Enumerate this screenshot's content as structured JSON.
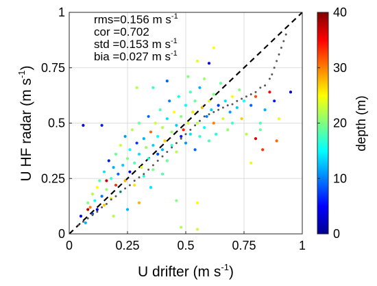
{
  "chart_data": {
    "type": "scatter",
    "xlabel": "U drifter (m s",
    "xlabel_sup": "-1",
    "xlabel_end": ")",
    "ylabel": "U HF radar (m s",
    "ylabel_sup": "-1",
    "ylabel_end": ")",
    "xlim": [
      0,
      1
    ],
    "ylim": [
      0,
      1
    ],
    "x_ticks": [
      0,
      0.25,
      0.5,
      0.75,
      1
    ],
    "y_ticks": [
      0,
      0.25,
      0.5,
      0.75,
      1
    ],
    "x_tick_labels": [
      "0",
      "0.25",
      "0.5",
      "0.75",
      "1"
    ],
    "y_tick_labels": [
      "0",
      "0.25",
      "0.5",
      "0.75",
      "1"
    ],
    "grid": true,
    "stats": [
      {
        "label": "rms=0.156 m s",
        "sup": "-1"
      },
      {
        "label": "cor =0.702",
        "sup": ""
      },
      {
        "label": "std =0.153 m s",
        "sup": "-1"
      },
      {
        "label": "bia =0.027 m s",
        "sup": "-1"
      }
    ],
    "colorbar": {
      "label": "depth (m)",
      "range": [
        0,
        40
      ],
      "ticks": [
        0,
        10,
        20,
        30,
        40
      ],
      "tick_labels": [
        "0",
        "10",
        "20",
        "30",
        "40"
      ],
      "colormap": "jet"
    },
    "reference_line": {
      "style": "dashed",
      "from": [
        0,
        0
      ],
      "to": [
        1,
        1
      ],
      "color": "#000000"
    },
    "quantile_series": {
      "color": "#555555",
      "points": [
        [
          0.04,
          0.04
        ],
        [
          0.06,
          0.055
        ],
        [
          0.08,
          0.07
        ],
        [
          0.1,
          0.085
        ],
        [
          0.12,
          0.1
        ],
        [
          0.14,
          0.12
        ],
        [
          0.16,
          0.135
        ],
        [
          0.18,
          0.155
        ],
        [
          0.2,
          0.17
        ],
        [
          0.22,
          0.19
        ],
        [
          0.24,
          0.205
        ],
        [
          0.26,
          0.22
        ],
        [
          0.28,
          0.24
        ],
        [
          0.3,
          0.255
        ],
        [
          0.32,
          0.27
        ],
        [
          0.34,
          0.29
        ],
        [
          0.36,
          0.31
        ],
        [
          0.38,
          0.33
        ],
        [
          0.4,
          0.35
        ],
        [
          0.42,
          0.37
        ],
        [
          0.44,
          0.39
        ],
        [
          0.46,
          0.41
        ],
        [
          0.48,
          0.43
        ],
        [
          0.5,
          0.45
        ],
        [
          0.52,
          0.47
        ],
        [
          0.54,
          0.49
        ],
        [
          0.56,
          0.51
        ],
        [
          0.58,
          0.53
        ],
        [
          0.6,
          0.54
        ],
        [
          0.62,
          0.55
        ],
        [
          0.64,
          0.56
        ],
        [
          0.66,
          0.57
        ],
        [
          0.68,
          0.58
        ],
        [
          0.7,
          0.585
        ],
        [
          0.72,
          0.6
        ],
        [
          0.74,
          0.61
        ],
        [
          0.76,
          0.62
        ],
        [
          0.78,
          0.63
        ],
        [
          0.8,
          0.64
        ],
        [
          0.82,
          0.66
        ],
        [
          0.84,
          0.67
        ],
        [
          0.86,
          0.7
        ],
        [
          0.87,
          0.72
        ],
        [
          0.88,
          0.75
        ],
        [
          0.89,
          0.78
        ],
        [
          0.9,
          0.81
        ],
        [
          0.91,
          0.84
        ],
        [
          0.92,
          0.87
        ],
        [
          0.93,
          0.9
        ]
      ]
    },
    "points": [
      {
        "x": 0.05,
        "y": 0.08,
        "d": 5
      },
      {
        "x": 0.07,
        "y": 0.05,
        "d": 12
      },
      {
        "x": 0.08,
        "y": 0.14,
        "d": 20
      },
      {
        "x": 0.09,
        "y": 0.12,
        "d": 30
      },
      {
        "x": 0.1,
        "y": 0.18,
        "d": 22
      },
      {
        "x": 0.1,
        "y": 0.09,
        "d": 8
      },
      {
        "x": 0.11,
        "y": 0.15,
        "d": 15
      },
      {
        "x": 0.12,
        "y": 0.21,
        "d": 25
      },
      {
        "x": 0.12,
        "y": 0.11,
        "d": 3
      },
      {
        "x": 0.13,
        "y": 0.24,
        "d": 18
      },
      {
        "x": 0.14,
        "y": 0.17,
        "d": 10
      },
      {
        "x": 0.15,
        "y": 0.13,
        "d": 27
      },
      {
        "x": 0.15,
        "y": 0.28,
        "d": 14
      },
      {
        "x": 0.16,
        "y": 0.2,
        "d": 21
      },
      {
        "x": 0.17,
        "y": 0.33,
        "d": 6
      },
      {
        "x": 0.18,
        "y": 0.25,
        "d": 17
      },
      {
        "x": 0.18,
        "y": 0.16,
        "d": 24
      },
      {
        "x": 0.19,
        "y": 0.3,
        "d": 12
      },
      {
        "x": 0.2,
        "y": 0.22,
        "d": 33
      },
      {
        "x": 0.2,
        "y": 0.36,
        "d": 19
      },
      {
        "x": 0.21,
        "y": 0.27,
        "d": 9
      },
      {
        "x": 0.22,
        "y": 0.19,
        "d": 16
      },
      {
        "x": 0.22,
        "y": 0.4,
        "d": 23
      },
      {
        "x": 0.23,
        "y": 0.31,
        "d": 13
      },
      {
        "x": 0.24,
        "y": 0.24,
        "d": 28
      },
      {
        "x": 0.24,
        "y": 0.44,
        "d": 11
      },
      {
        "x": 0.25,
        "y": 0.34,
        "d": 20
      },
      {
        "x": 0.26,
        "y": 0.28,
        "d": 4
      },
      {
        "x": 0.26,
        "y": 0.38,
        "d": 15
      },
      {
        "x": 0.27,
        "y": 0.47,
        "d": 22
      },
      {
        "x": 0.28,
        "y": 0.32,
        "d": 18
      },
      {
        "x": 0.28,
        "y": 0.22,
        "d": 26
      },
      {
        "x": 0.29,
        "y": 0.41,
        "d": 7
      },
      {
        "x": 0.3,
        "y": 0.36,
        "d": 14
      },
      {
        "x": 0.3,
        "y": 0.5,
        "d": 19
      },
      {
        "x": 0.31,
        "y": 0.3,
        "d": 24
      },
      {
        "x": 0.32,
        "y": 0.43,
        "d": 12
      },
      {
        "x": 0.32,
        "y": 0.26,
        "d": 17
      },
      {
        "x": 0.33,
        "y": 0.39,
        "d": 21
      },
      {
        "x": 0.34,
        "y": 0.53,
        "d": 9
      },
      {
        "x": 0.34,
        "y": 0.34,
        "d": 16
      },
      {
        "x": 0.35,
        "y": 0.46,
        "d": 31
      },
      {
        "x": 0.36,
        "y": 0.4,
        "d": 13
      },
      {
        "x": 0.36,
        "y": 0.29,
        "d": 20
      },
      {
        "x": 0.37,
        "y": 0.5,
        "d": 23
      },
      {
        "x": 0.38,
        "y": 0.44,
        "d": 15
      },
      {
        "x": 0.38,
        "y": 0.36,
        "d": 8
      },
      {
        "x": 0.39,
        "y": 0.56,
        "d": 18
      },
      {
        "x": 0.4,
        "y": 0.48,
        "d": 22
      },
      {
        "x": 0.4,
        "y": 0.38,
        "d": 12
      },
      {
        "x": 0.41,
        "y": 0.42,
        "d": 27
      },
      {
        "x": 0.42,
        "y": 0.52,
        "d": 14
      },
      {
        "x": 0.42,
        "y": 0.33,
        "d": 19
      },
      {
        "x": 0.43,
        "y": 0.6,
        "d": 10
      },
      {
        "x": 0.44,
        "y": 0.46,
        "d": 21
      },
      {
        "x": 0.44,
        "y": 0.4,
        "d": 17
      },
      {
        "x": 0.45,
        "y": 0.55,
        "d": 25
      },
      {
        "x": 0.46,
        "y": 0.49,
        "d": 13
      },
      {
        "x": 0.46,
        "y": 0.37,
        "d": 22
      },
      {
        "x": 0.47,
        "y": 0.62,
        "d": 16
      },
      {
        "x": 0.48,
        "y": 0.44,
        "d": 6
      },
      {
        "x": 0.48,
        "y": 0.53,
        "d": 20
      },
      {
        "x": 0.49,
        "y": 0.47,
        "d": 34
      },
      {
        "x": 0.5,
        "y": 0.58,
        "d": 15
      },
      {
        "x": 0.5,
        "y": 0.41,
        "d": 11
      },
      {
        "x": 0.51,
        "y": 0.5,
        "d": 23
      },
      {
        "x": 0.52,
        "y": 0.64,
        "d": 18
      },
      {
        "x": 0.52,
        "y": 0.45,
        "d": 14
      },
      {
        "x": 0.53,
        "y": 0.55,
        "d": 26
      },
      {
        "x": 0.54,
        "y": 0.38,
        "d": 9
      },
      {
        "x": 0.54,
        "y": 0.6,
        "d": 19
      },
      {
        "x": 0.55,
        "y": 0.5,
        "d": 22
      },
      {
        "x": 0.56,
        "y": 0.66,
        "d": 12
      },
      {
        "x": 0.56,
        "y": 0.44,
        "d": 17
      },
      {
        "x": 0.57,
        "y": 0.57,
        "d": 28
      },
      {
        "x": 0.58,
        "y": 0.48,
        "d": 15
      },
      {
        "x": 0.58,
        "y": 0.7,
        "d": 21
      },
      {
        "x": 0.59,
        "y": 0.53,
        "d": 10
      },
      {
        "x": 0.6,
        "y": 0.6,
        "d": 24
      },
      {
        "x": 0.6,
        "y": 0.42,
        "d": 18
      },
      {
        "x": 0.61,
        "y": 0.56,
        "d": 13
      },
      {
        "x": 0.62,
        "y": 0.63,
        "d": 20
      },
      {
        "x": 0.62,
        "y": 0.5,
        "d": 30
      },
      {
        "x": 0.63,
        "y": 0.45,
        "d": 16
      },
      {
        "x": 0.64,
        "y": 0.58,
        "d": 7
      },
      {
        "x": 0.65,
        "y": 0.68,
        "d": 19
      },
      {
        "x": 0.66,
        "y": 0.52,
        "d": 23
      },
      {
        "x": 0.67,
        "y": 0.6,
        "d": 14
      },
      {
        "x": 0.68,
        "y": 0.47,
        "d": 21
      },
      {
        "x": 0.69,
        "y": 0.55,
        "d": 11
      },
      {
        "x": 0.7,
        "y": 0.62,
        "d": 25
      },
      {
        "x": 0.7,
        "y": 0.5,
        "d": 17
      },
      {
        "x": 0.72,
        "y": 0.57,
        "d": 13
      },
      {
        "x": 0.73,
        "y": 0.65,
        "d": 20
      },
      {
        "x": 0.74,
        "y": 0.52,
        "d": 27
      },
      {
        "x": 0.75,
        "y": 0.6,
        "d": 15
      },
      {
        "x": 0.76,
        "y": 0.45,
        "d": 22
      },
      {
        "x": 0.78,
        "y": 0.58,
        "d": 9
      },
      {
        "x": 0.8,
        "y": 0.62,
        "d": 32
      },
      {
        "x": 0.82,
        "y": 0.5,
        "d": 18
      },
      {
        "x": 0.84,
        "y": 0.56,
        "d": 12
      },
      {
        "x": 0.86,
        "y": 0.64,
        "d": 35
      },
      {
        "x": 0.88,
        "y": 0.6,
        "d": 6
      },
      {
        "x": 0.9,
        "y": 0.52,
        "d": 24
      },
      {
        "x": 0.95,
        "y": 0.64,
        "d": 3
      },
      {
        "x": 0.06,
        "y": 0.49,
        "d": 4
      },
      {
        "x": 0.14,
        "y": 0.49,
        "d": 6
      },
      {
        "x": 0.29,
        "y": 0.66,
        "d": 22
      },
      {
        "x": 0.36,
        "y": 0.66,
        "d": 17
      },
      {
        "x": 0.42,
        "y": 0.69,
        "d": 9
      },
      {
        "x": 0.51,
        "y": 0.71,
        "d": 20
      },
      {
        "x": 0.55,
        "y": 0.78,
        "d": 24
      },
      {
        "x": 0.62,
        "y": 0.84,
        "d": 25
      },
      {
        "x": 0.6,
        "y": 0.77,
        "d": 5
      },
      {
        "x": 0.48,
        "y": 0.03,
        "d": 22
      },
      {
        "x": 0.55,
        "y": 0.02,
        "d": 23
      },
      {
        "x": 0.46,
        "y": 0.15,
        "d": 20
      },
      {
        "x": 0.55,
        "y": 0.14,
        "d": 25
      },
      {
        "x": 0.4,
        "y": 0.27,
        "d": 18
      },
      {
        "x": 0.35,
        "y": 0.21,
        "d": 14
      },
      {
        "x": 0.8,
        "y": 0.43,
        "d": 36
      },
      {
        "x": 0.83,
        "y": 0.38,
        "d": 33
      },
      {
        "x": 0.89,
        "y": 0.42,
        "d": 31
      },
      {
        "x": 0.82,
        "y": 0.47,
        "d": 19
      },
      {
        "x": 0.78,
        "y": 0.32,
        "d": 24
      },
      {
        "x": 0.25,
        "y": 0.11,
        "d": 12
      },
      {
        "x": 0.19,
        "y": 0.08,
        "d": 22
      },
      {
        "x": 0.3,
        "y": 0.14,
        "d": 28
      },
      {
        "x": 0.16,
        "y": 0.24,
        "d": 37
      },
      {
        "x": 0.08,
        "y": 0.11,
        "d": 38
      }
    ]
  }
}
